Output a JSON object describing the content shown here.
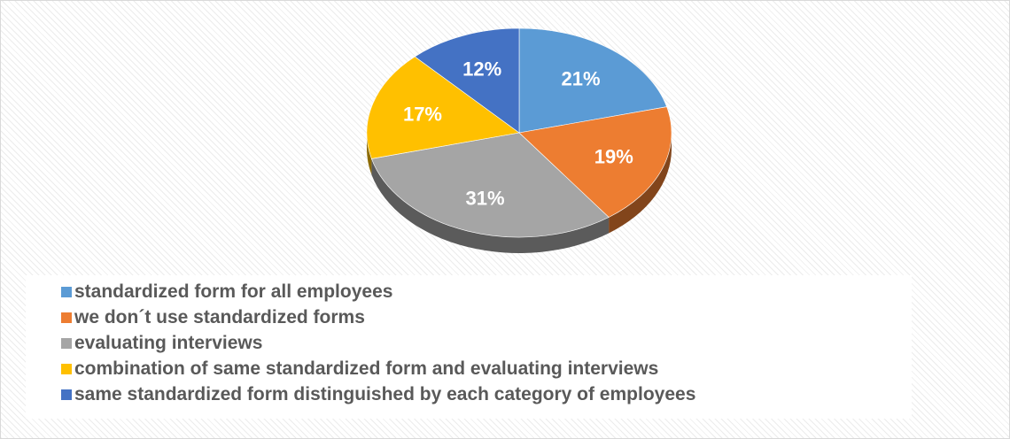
{
  "chart_data": {
    "type": "pie",
    "title": "",
    "three_d": true,
    "legend_position": "bottom",
    "slices": [
      {
        "name": "standardized form for all employees",
        "value": 21,
        "label": "21%",
        "color": "#5b9bd5"
      },
      {
        "name": "we don´t use standardized forms",
        "value": 19,
        "label": "19%",
        "color": "#ed7d31"
      },
      {
        "name": "evaluating interviews",
        "value": 31,
        "label": "31%",
        "color": "#a5a5a5"
      },
      {
        "name": "combination of same standardized form and evaluating interviews",
        "value": 17,
        "label": "17%",
        "color": "#ffc000"
      },
      {
        "name": "same standardized form distinguished by each category of employees",
        "value": 12,
        "label": "12%",
        "color": "#4472c4"
      }
    ]
  }
}
